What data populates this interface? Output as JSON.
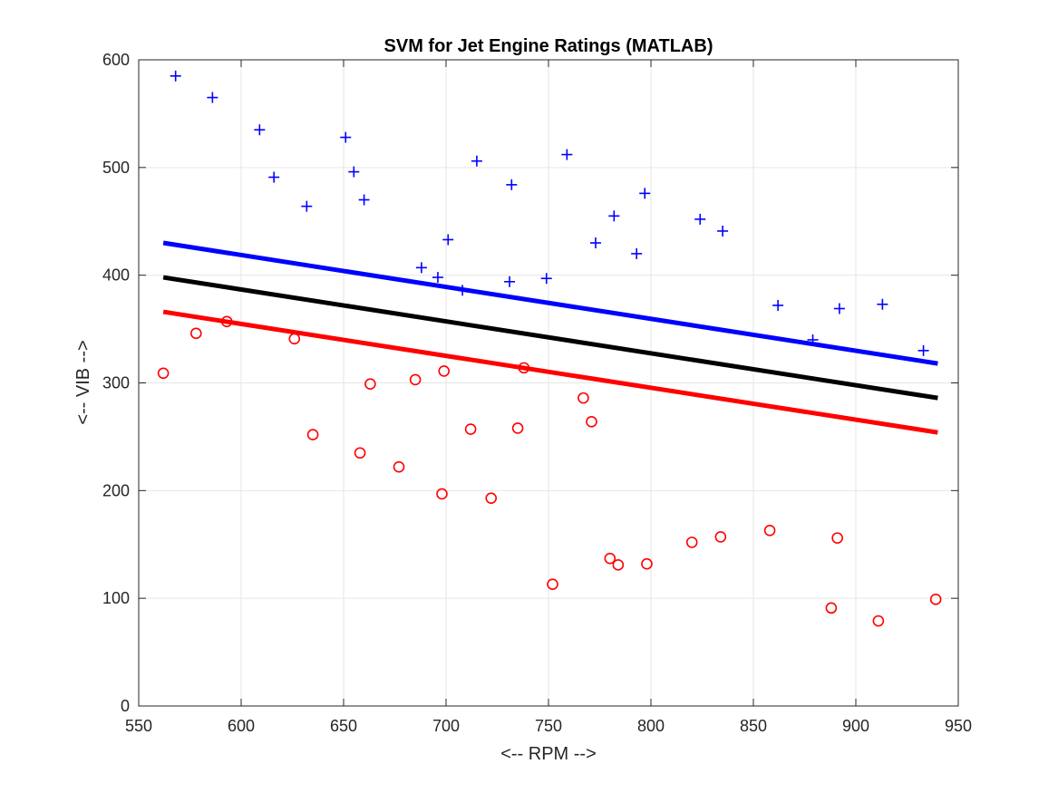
{
  "chart_data": {
    "type": "scatter",
    "title": "SVM for Jet Engine Ratings (MATLAB)",
    "xlabel": "<-- RPM -->",
    "ylabel": "<-- VIB -->",
    "xlim": [
      550,
      950
    ],
    "ylim": [
      0,
      600
    ],
    "xticks": [
      "550",
      "600",
      "650",
      "700",
      "750",
      "800",
      "850",
      "900",
      "950"
    ],
    "yticks": [
      "0",
      "100",
      "200",
      "300",
      "400",
      "500",
      "600"
    ],
    "grid": true,
    "colors": {
      "class_plus": "#0000ff",
      "class_circle": "#ff0000",
      "boundary": "#000000"
    },
    "series": [
      {
        "marker": "plus",
        "color": "#0000ff",
        "points": [
          [
            568,
            585
          ],
          [
            586,
            565
          ],
          [
            609,
            535
          ],
          [
            616,
            491
          ],
          [
            632,
            464
          ],
          [
            651,
            528
          ],
          [
            655,
            496
          ],
          [
            660,
            470
          ],
          [
            688,
            407
          ],
          [
            696,
            398
          ],
          [
            701,
            433
          ],
          [
            708,
            386
          ],
          [
            715,
            506
          ],
          [
            731,
            394
          ],
          [
            732,
            484
          ],
          [
            749,
            397
          ],
          [
            759,
            512
          ],
          [
            773,
            430
          ],
          [
            782,
            455
          ],
          [
            793,
            420
          ],
          [
            797,
            476
          ],
          [
            824,
            452
          ],
          [
            835,
            441
          ],
          [
            862,
            372
          ],
          [
            879,
            340
          ],
          [
            892,
            369
          ],
          [
            913,
            373
          ],
          [
            933,
            330
          ]
        ]
      },
      {
        "marker": "circle",
        "color": "#ff0000",
        "points": [
          [
            562,
            309
          ],
          [
            578,
            346
          ],
          [
            593,
            357
          ],
          [
            626,
            341
          ],
          [
            635,
            252
          ],
          [
            658,
            235
          ],
          [
            663,
            299
          ],
          [
            677,
            222
          ],
          [
            685,
            303
          ],
          [
            698,
            197
          ],
          [
            699,
            311
          ],
          [
            712,
            257
          ],
          [
            722,
            193
          ],
          [
            735,
            258
          ],
          [
            738,
            314
          ],
          [
            752,
            113
          ],
          [
            767,
            286
          ],
          [
            771,
            264
          ],
          [
            780,
            137
          ],
          [
            784,
            131
          ],
          [
            798,
            132
          ],
          [
            820,
            152
          ],
          [
            834,
            157
          ],
          [
            858,
            163
          ],
          [
            888,
            91
          ],
          [
            891,
            156
          ],
          [
            911,
            79
          ],
          [
            939,
            99
          ]
        ]
      }
    ],
    "lines": [
      {
        "role": "margin-upper",
        "color": "#0000ff",
        "points": [
          [
            562,
            430
          ],
          [
            940,
            318
          ]
        ]
      },
      {
        "role": "decision-boundary",
        "color": "#000000",
        "points": [
          [
            562,
            398
          ],
          [
            940,
            286
          ]
        ]
      },
      {
        "role": "margin-lower",
        "color": "#ff0000",
        "points": [
          [
            562,
            366
          ],
          [
            940,
            254
          ]
        ]
      }
    ]
  }
}
